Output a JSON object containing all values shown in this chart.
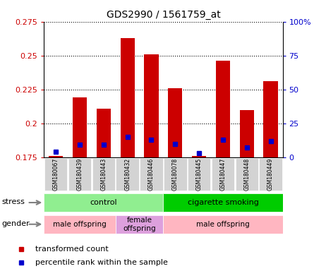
{
  "title": "GDS2990 / 1561759_at",
  "samples": [
    "GSM180067",
    "GSM180439",
    "GSM180443",
    "GSM180432",
    "GSM180446",
    "GSM180078",
    "GSM180445",
    "GSM180447",
    "GSM180448",
    "GSM180449"
  ],
  "red_values": [
    0.176,
    0.219,
    0.211,
    0.263,
    0.251,
    0.226,
    0.176,
    0.246,
    0.21,
    0.231
  ],
  "blue_values": [
    0.179,
    0.184,
    0.184,
    0.19,
    0.188,
    0.185,
    0.178,
    0.188,
    0.182,
    0.187
  ],
  "ymin": 0.175,
  "ymax": 0.275,
  "yticks": [
    0.175,
    0.2,
    0.225,
    0.25,
    0.275
  ],
  "y2ticks": [
    0,
    25,
    50,
    75,
    100
  ],
  "stress_groups": [
    {
      "label": "control",
      "start": 0,
      "end": 5,
      "color": "#90ee90"
    },
    {
      "label": "cigarette smoking",
      "start": 5,
      "end": 10,
      "color": "#00cc00"
    }
  ],
  "gender_groups": [
    {
      "label": "male offspring",
      "start": 0,
      "end": 3,
      "color": "#ffb6c1"
    },
    {
      "label": "female\noffspring",
      "start": 3,
      "end": 5,
      "color": "#dda0dd"
    },
    {
      "label": "male offspring",
      "start": 5,
      "end": 10,
      "color": "#ffb6c1"
    }
  ],
  "bar_color_red": "#cc0000",
  "bar_color_blue": "#0000cc",
  "bar_width": 0.6,
  "axis_label_color_left": "#cc0000",
  "axis_label_color_right": "#0000cc"
}
